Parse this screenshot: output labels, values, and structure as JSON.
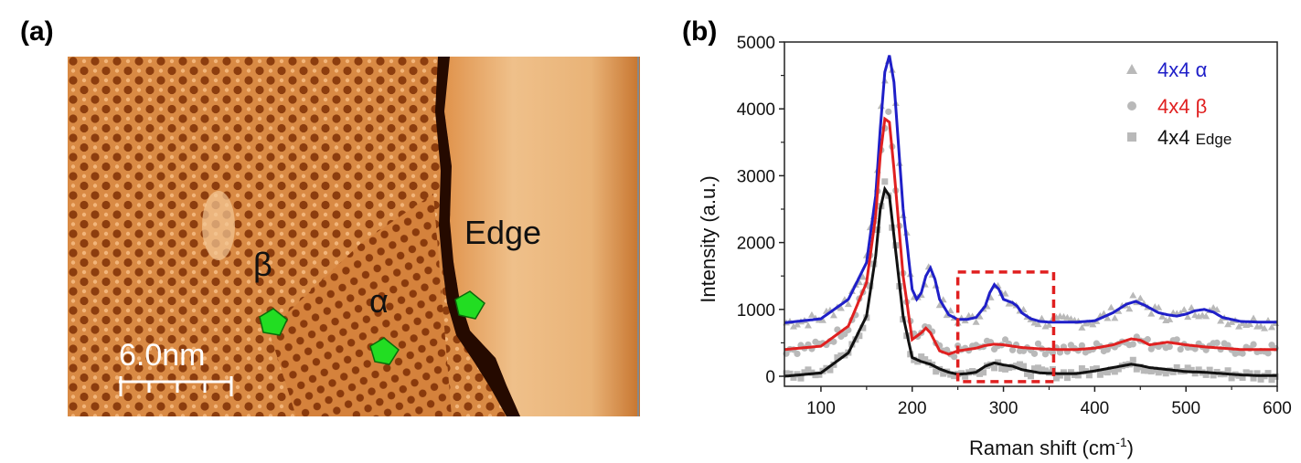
{
  "figure": {
    "panel_a_label": "(a)",
    "panel_b_label": "(b)"
  },
  "stm_image": {
    "region_labels": {
      "beta": "β",
      "alpha": "α",
      "edge": "Edge"
    },
    "scale_bar_label": "6.0nm",
    "colors": {
      "terrace": "#d9833a",
      "dark_pit": "#8a3b0c",
      "edge_step": "#2a0c00",
      "upper_terrace": "#e7a865",
      "marker": "#22dd22"
    },
    "markers": [
      "beta-site-marker",
      "alpha-site-marker",
      "edge-site-marker"
    ]
  },
  "chart_data": {
    "type": "line",
    "xlabel": "Raman shift (cm",
    "xlabel_sup": "-1",
    "xlabel_end": ")",
    "ylabel": "Intensity (a.u.)",
    "xlim": [
      60,
      600
    ],
    "ylim": [
      -150,
      5000
    ],
    "xticks": [
      100,
      200,
      300,
      400,
      500,
      600
    ],
    "yticks": [
      0,
      1000,
      2000,
      3000,
      4000,
      5000
    ],
    "legend_position": "top-right",
    "series": [
      {
        "name": "4x4 α",
        "label_main": "4x4",
        "label_tail": "α",
        "color": "#1f1fc8",
        "marker": "triangle",
        "baseline": 800,
        "x": [
          60,
          100,
          130,
          150,
          160,
          165,
          170,
          175,
          180,
          190,
          200,
          205,
          210,
          215,
          220,
          225,
          230,
          240,
          250,
          260,
          270,
          280,
          285,
          290,
          295,
          300,
          310,
          315,
          320,
          330,
          340,
          350,
          360,
          380,
          400,
          420,
          435,
          445,
          455,
          470,
          480,
          490,
          500,
          510,
          520,
          530,
          540,
          560,
          580,
          600
        ],
        "y": [
          800,
          860,
          1150,
          1700,
          2700,
          3700,
          4550,
          4800,
          4400,
          2500,
          1300,
          1150,
          1250,
          1500,
          1620,
          1450,
          1150,
          920,
          850,
          850,
          880,
          1050,
          1250,
          1370,
          1300,
          1150,
          1100,
          1050,
          950,
          860,
          820,
          810,
          810,
          810,
          830,
          950,
          1080,
          1120,
          1060,
          950,
          920,
          900,
          930,
          980,
          1000,
          960,
          880,
          820,
          810,
          810
        ]
      },
      {
        "name": "4x4 β",
        "label_main": "4x4",
        "label_tail": "β",
        "color": "#e02020",
        "marker": "circle",
        "baseline": 400,
        "x": [
          60,
          100,
          130,
          150,
          160,
          165,
          170,
          175,
          180,
          190,
          200,
          210,
          215,
          220,
          230,
          240,
          250,
          260,
          270,
          280,
          290,
          300,
          310,
          320,
          340,
          360,
          380,
          400,
          420,
          440,
          450,
          460,
          480,
          500,
          520,
          540,
          560,
          580,
          600
        ],
        "y": [
          400,
          450,
          750,
          1400,
          2400,
          3300,
          3850,
          3800,
          3100,
          1500,
          550,
          650,
          720,
          650,
          380,
          330,
          380,
          400,
          420,
          460,
          480,
          470,
          450,
          430,
          410,
          400,
          400,
          420,
          470,
          560,
          540,
          470,
          510,
          470,
          440,
          420,
          400,
          400,
          400
        ]
      },
      {
        "name": "4x4 Edge",
        "label_main": "4x4",
        "label_tail": "Edge",
        "color": "#111111",
        "marker": "square",
        "baseline": 0,
        "x": [
          60,
          100,
          130,
          150,
          160,
          165,
          170,
          175,
          180,
          190,
          200,
          210,
          220,
          230,
          240,
          250,
          260,
          270,
          280,
          290,
          300,
          310,
          320,
          340,
          360,
          380,
          400,
          420,
          440,
          450,
          460,
          480,
          500,
          520,
          540,
          560,
          580,
          600
        ],
        "y": [
          0,
          50,
          350,
          900,
          1800,
          2500,
          2800,
          2700,
          2100,
          900,
          280,
          220,
          180,
          110,
          60,
          30,
          40,
          60,
          150,
          200,
          170,
          150,
          100,
          50,
          40,
          40,
          80,
          130,
          180,
          160,
          130,
          100,
          70,
          60,
          40,
          20,
          10,
          10
        ]
      }
    ],
    "annotation": {
      "type": "dashed-box",
      "x_range": [
        250,
        355
      ],
      "y_range": [
        -80,
        1560
      ],
      "color": "#e02020"
    }
  }
}
